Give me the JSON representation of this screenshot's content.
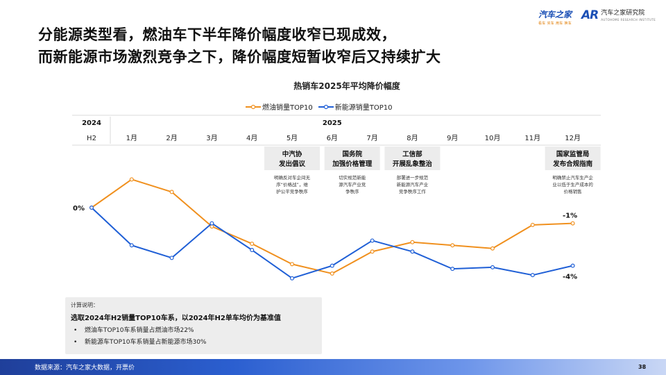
{
  "headline": {
    "line1": "分能源类型看，燃油车下半年降价幅度收窄已现成效，",
    "line2": "而新能源市场激烈竞争之下，降价幅度短暂收窄后又持续扩大"
  },
  "logos": {
    "autohome": "汽车之家",
    "autohome_slogan": "看车 买车 用车 换车",
    "research_mark": "AR",
    "research_cn": "汽车之家研究院",
    "research_en": "AUTOHOME RESEARCH INSTITUTE"
  },
  "chart_data": {
    "type": "line",
    "title": "热销车2025年平均降价幅度",
    "year_labels": [
      {
        "label": "2024",
        "col": 0
      },
      {
        "label": "2025",
        "col": 6
      }
    ],
    "categories": [
      "H2",
      "1月",
      "2月",
      "3月",
      "4月",
      "5月",
      "6月",
      "7月",
      "8月",
      "9月",
      "10月",
      "11月",
      "12月"
    ],
    "ylim": [
      -5.5,
      2.0
    ],
    "series": [
      {
        "name": "燃油销量TOP10",
        "color": "#f0901e",
        "values": [
          0,
          1.8,
          1.0,
          -1.2,
          -2.3,
          -3.6,
          -4.2,
          -2.8,
          -2.2,
          -2.4,
          -2.6,
          -1.1,
          -1.0
        ]
      },
      {
        "name": "新能源销量TOP10",
        "color": "#1f5fd6",
        "values": [
          0,
          -2.4,
          -3.2,
          -1.0,
          -2.7,
          -4.5,
          -3.7,
          -2.1,
          -2.8,
          -3.9,
          -3.8,
          -4.3,
          -3.7
        ]
      }
    ],
    "value_labels": [
      {
        "text": "0%",
        "series": 0,
        "index": 0,
        "pos": "left"
      },
      {
        "text": "-1%",
        "series": 0,
        "index": 12,
        "pos": "above"
      },
      {
        "text": "-4%",
        "series": 1,
        "index": 12,
        "pos": "below"
      }
    ],
    "annotations": [
      {
        "col": 5,
        "title1": "中汽协",
        "title2": "发出倡议",
        "desc": [
          "明确反对车企间无",
          "序“价格战”，维",
          "护公平竞争秩序"
        ]
      },
      {
        "col": 6.5,
        "title1": "国务院",
        "title2": "加强价格管理",
        "desc": [
          "切实规范新能",
          "源汽车产业竞",
          "争秩序"
        ]
      },
      {
        "col": 8,
        "title1": "工信部",
        "title2": "开展乱象整治",
        "desc": [
          "部署进一步规范",
          "新能源汽车产业",
          "竞争秩序工作"
        ]
      },
      {
        "col": 12,
        "title1": "国家监管局",
        "title2": "发布合规指南",
        "desc": [
          "明确禁止汽车生产企",
          "业以低于生产成本的",
          "价格销售"
        ]
      }
    ]
  },
  "note": {
    "label": "计算说明：",
    "main": "选取2024年H2销量TOP10车系，以2024年H2单车均价为基准值",
    "bullets": [
      "燃油车TOP10车系销量占燃油市场22%",
      "新能源车TOP10车系销量占新能源市场30%"
    ],
    "bullet_symbol": "•"
  },
  "footer": {
    "source": "数据来源：汽车之家大数据，开票价",
    "page": "38"
  }
}
